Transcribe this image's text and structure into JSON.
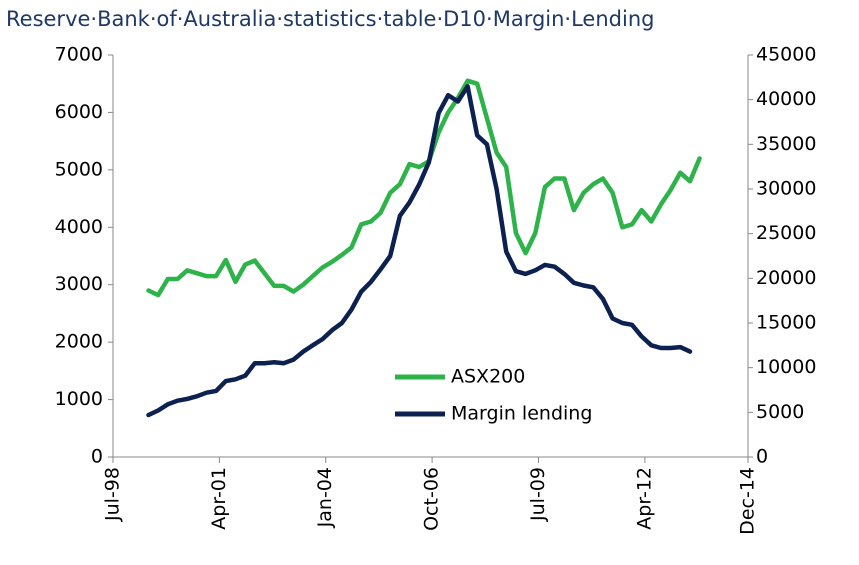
{
  "chart_data": {
    "type": "line",
    "title": "Reserve·Bank·of·Australia·statistics·table·D10·Margin·Lending",
    "x": [
      "1999-06",
      "1999-09",
      "1999-12",
      "2000-03",
      "2000-06",
      "2000-09",
      "2000-12",
      "2001-03",
      "2001-06",
      "2001-09",
      "2001-12",
      "2002-03",
      "2002-06",
      "2002-09",
      "2002-12",
      "2003-03",
      "2003-06",
      "2003-09",
      "2003-12",
      "2004-03",
      "2004-06",
      "2004-09",
      "2004-12",
      "2005-03",
      "2005-06",
      "2005-09",
      "2005-12",
      "2006-03",
      "2006-06",
      "2006-09",
      "2006-12",
      "2007-03",
      "2007-06",
      "2007-09",
      "2007-12",
      "2008-03",
      "2008-06",
      "2008-09",
      "2008-12",
      "2009-03",
      "2009-06",
      "2009-09",
      "2009-12",
      "2010-03",
      "2010-06",
      "2010-09",
      "2010-12",
      "2011-03",
      "2011-06",
      "2011-09",
      "2011-12",
      "2012-03",
      "2012-06",
      "2012-09",
      "2012-12",
      "2013-03",
      "2013-06",
      "2013-09"
    ],
    "series": [
      {
        "name": "ASX200",
        "color": "#2db34a",
        "values": [
          2900,
          2820,
          3100,
          3100,
          3250,
          3200,
          3150,
          3150,
          3430,
          3050,
          3350,
          3420,
          3200,
          2980,
          2980,
          2880,
          3000,
          3150,
          3300,
          3400,
          3520,
          3650,
          4050,
          4100,
          4250,
          4600,
          4750,
          5100,
          5050,
          5150,
          5650,
          6000,
          6250,
          6550,
          6500,
          5900,
          5300,
          5050,
          3900,
          3550,
          3900,
          4700,
          4850,
          4850,
          4300,
          4600,
          4750,
          4850,
          4600,
          4000,
          4050,
          4300,
          4100,
          4400,
          4650,
          4950,
          4800,
          5200
        ]
      },
      {
        "name": "Margin lending",
        "color": "#0d2150",
        "axis": "y2",
        "values": [
          4700,
          5200,
          5900,
          6300,
          6500,
          6800,
          7200,
          7400,
          8500,
          8700,
          9100,
          10500,
          10500,
          10600,
          10500,
          10900,
          11800,
          12500,
          13200,
          14200,
          15000,
          16500,
          18500,
          19600,
          21000,
          22500,
          27000,
          28500,
          30500,
          33000,
          38500,
          40500,
          39800,
          41500,
          36000,
          35000,
          30000,
          23000,
          20800,
          20500,
          20900,
          21500,
          21300,
          20500,
          19500,
          19200,
          19000,
          17700,
          15500,
          15000,
          14800,
          13500,
          12500,
          12200,
          12200,
          12300,
          11800,
          null
        ]
      }
    ],
    "xlim": [
      "1998-07",
      "2014-12"
    ],
    "xticks": [
      {
        "value": "1998-07",
        "label": "Jul-98"
      },
      {
        "value": "2001-04",
        "label": "Apr-01"
      },
      {
        "value": "2004-01",
        "label": "Jan-04"
      },
      {
        "value": "2006-10",
        "label": "Oct-06"
      },
      {
        "value": "2009-07",
        "label": "Jul-09"
      },
      {
        "value": "2012-04",
        "label": "Apr-12"
      },
      {
        "value": "2014-12",
        "label": "Dec-14"
      }
    ],
    "ylim": [
      0,
      7000
    ],
    "yticks": [
      0,
      1000,
      2000,
      3000,
      4000,
      5000,
      6000,
      7000
    ],
    "y2lim": [
      0,
      45000
    ],
    "y2ticks": [
      0,
      5000,
      10000,
      15000,
      20000,
      25000,
      30000,
      35000,
      40000,
      45000
    ],
    "legend": "lower center"
  }
}
